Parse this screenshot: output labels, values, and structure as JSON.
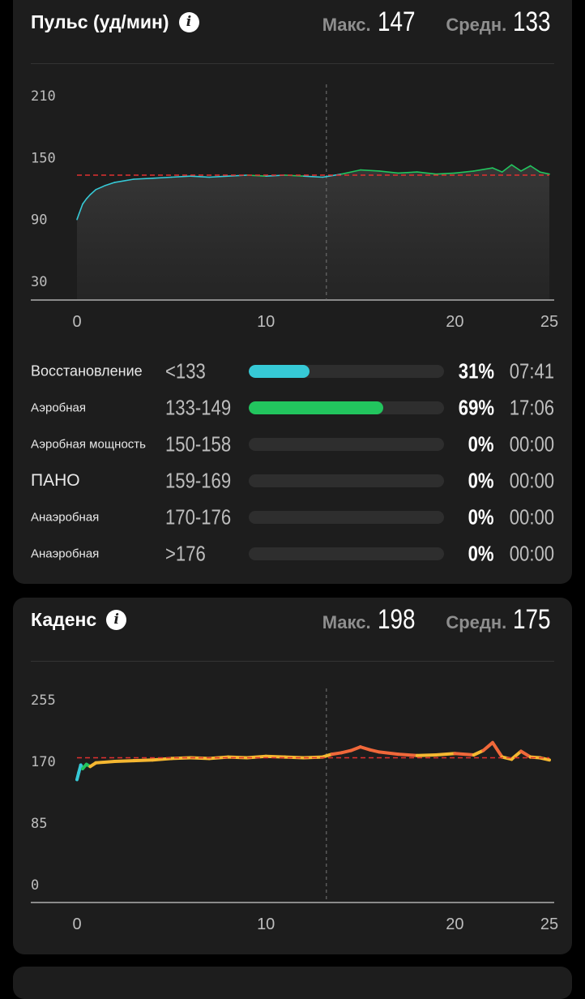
{
  "heart_rate": {
    "title": "Пульс (уд/мин)",
    "info_icon": "info-icon",
    "max_label": "Макс.",
    "max_value": "147",
    "avg_label": "Средн.",
    "avg_value": "133",
    "zones": [
      {
        "name": "Восстановление",
        "range": "<133",
        "percent": "31%",
        "fraction": 0.31,
        "time": "07:41",
        "color": "#36c9d6"
      },
      {
        "name": "Аэробная",
        "range": "133-149",
        "percent": "69%",
        "fraction": 0.69,
        "time": "17:06",
        "color": "#22c55e"
      },
      {
        "name": "Аэробная мощность",
        "range": "150-158",
        "percent": "0%",
        "fraction": 0,
        "time": "00:00",
        "color": "#f0c030"
      },
      {
        "name": "ПАНО",
        "range": "159-169",
        "percent": "0%",
        "fraction": 0,
        "time": "00:00",
        "color": "#ff8c3a"
      },
      {
        "name": "Анаэробная",
        "range": "170-176",
        "percent": "0%",
        "fraction": 0,
        "time": "00:00",
        "color": "#ff5a3a"
      },
      {
        "name": "Анаэробная",
        "range": ">176",
        "percent": "0%",
        "fraction": 0,
        "time": "00:00",
        "color": "#e02020"
      }
    ]
  },
  "cadence": {
    "title": "Каденс",
    "info_icon": "info-icon",
    "max_label": "Макс.",
    "max_value": "198",
    "avg_label": "Средн.",
    "avg_value": "175"
  },
  "chart_data": [
    {
      "type": "line",
      "title": "Пульс (уд/мин)",
      "x_ticks": [
        "0",
        "10",
        "20",
        "25"
      ],
      "y_ticks": [
        "30",
        "90",
        "150",
        "210"
      ],
      "xlim": [
        0,
        25
      ],
      "ylim": [
        30,
        210
      ],
      "average_line": 133,
      "cursor_x": 13.2,
      "colors": {
        "recovery": "#36c9d6",
        "aerobic": "#22c55e",
        "average": "#e03030"
      },
      "series": [
        {
          "x": [
            0,
            0.1,
            0.2,
            0.3,
            0.5,
            0.7,
            1,
            1.5,
            2,
            3,
            4,
            5,
            6,
            7,
            8,
            9,
            10,
            11,
            12,
            13,
            14,
            15,
            16,
            17,
            18,
            19,
            20,
            21,
            22,
            22.5,
            23,
            23.5,
            24,
            24.5,
            25
          ],
          "y": [
            90,
            95,
            100,
            105,
            110,
            114,
            119,
            123,
            126,
            129,
            130,
            131,
            132,
            131,
            132,
            133,
            132,
            133,
            132,
            131,
            134,
            138,
            137,
            135,
            136,
            134,
            135,
            137,
            140,
            136,
            143,
            137,
            142,
            136,
            134
          ]
        }
      ]
    },
    {
      "type": "line",
      "title": "Каденс",
      "x_ticks": [
        "0",
        "10",
        "20",
        "25"
      ],
      "y_ticks": [
        "0",
        "85",
        "170",
        "255"
      ],
      "xlim": [
        0,
        25
      ],
      "ylim": [
        0,
        255
      ],
      "average_line": 175,
      "cursor_x": 13.2,
      "colors": {
        "start": "#36c9d6",
        "mid": "#22c55e",
        "main": "#f5b731",
        "high": "#f0683a",
        "average": "#e03030"
      },
      "series": [
        {
          "x": [
            0,
            0.1,
            0.2,
            0.3,
            0.5,
            0.7,
            1,
            2,
            3,
            4,
            5,
            6,
            7,
            8,
            9,
            10,
            11,
            12,
            13,
            13.5,
            14,
            14.5,
            15,
            15.5,
            16,
            17,
            18,
            19,
            20,
            21,
            21.5,
            22,
            22.5,
            23,
            23.5,
            24,
            24.5,
            25
          ],
          "y": [
            145,
            155,
            165,
            160,
            166,
            163,
            168,
            170,
            171,
            172,
            174,
            175,
            174,
            176,
            175,
            177,
            176,
            175,
            176,
            180,
            182,
            185,
            190,
            186,
            183,
            180,
            178,
            179,
            181,
            179,
            185,
            196,
            176,
            173,
            184,
            176,
            175,
            172
          ]
        }
      ]
    }
  ]
}
